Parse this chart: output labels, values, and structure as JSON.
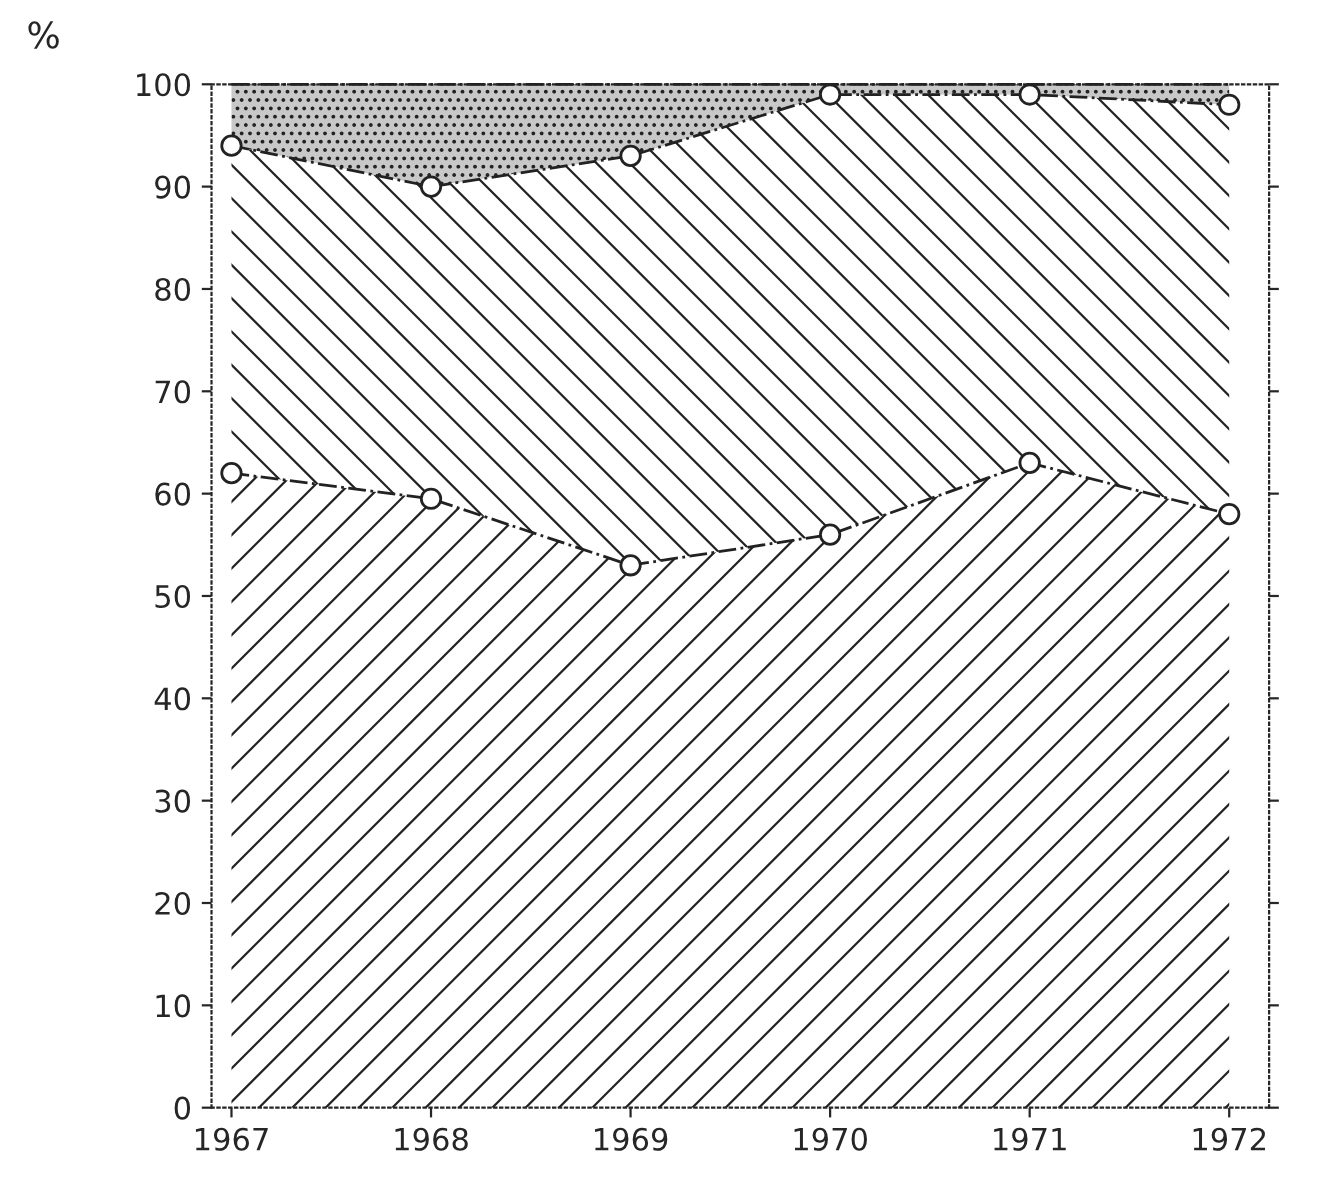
{
  "chart_data": {
    "type": "area",
    "stacked": true,
    "ylabel": "%",
    "categories": [
      "1967",
      "1968",
      "1969",
      "1970",
      "1971",
      "1972"
    ],
    "series": [
      {
        "color": "#ffffff",
        "values": [
          62,
          59.5,
          53,
          56,
          63,
          58
        ],
        "marker": "circle"
      },
      {
        "color": "#ffffff",
        "values": [
          32,
          30.5,
          40,
          43,
          36,
          40
        ],
        "marker": "circle"
      },
      {
        "color": "#c8c8c8",
        "values": [
          6,
          10,
          7,
          1,
          1,
          2
        ],
        "marker": "none"
      }
    ],
    "ylim": [
      0,
      100
    ],
    "yticks": [
      0,
      10,
      20,
      30,
      40,
      50,
      60,
      70,
      80,
      90,
      100
    ],
    "line_style": "dashed",
    "grid": false
  }
}
